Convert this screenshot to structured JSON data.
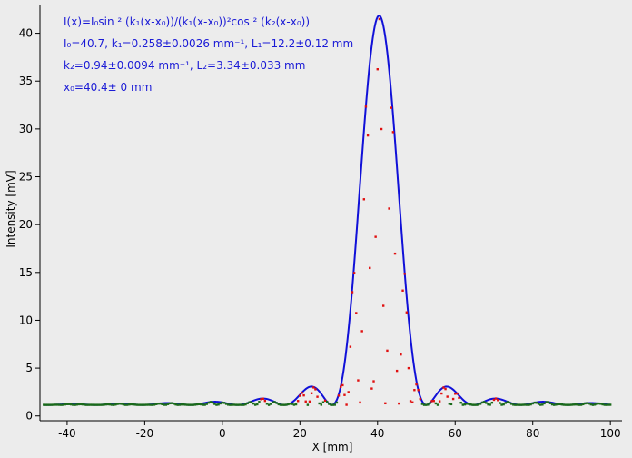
{
  "chart_data": {
    "type": "scatter",
    "xlabel": "X [mm]",
    "ylabel": "Intensity [mV]",
    "xlim": [
      -47,
      103
    ],
    "ylim": [
      -0.5,
      43
    ],
    "x_ticks": [
      -40,
      -20,
      0,
      20,
      40,
      60,
      80,
      100
    ],
    "y_ticks": [
      0,
      5,
      10,
      15,
      20,
      25,
      30,
      35,
      40
    ],
    "grid": false,
    "colors": {
      "fit": "#1010d8",
      "data": "#e01010",
      "data_dark": "#1a6a1a",
      "text": "#1a1ad6"
    },
    "annotation_lines": [
      "I(x)=I₀sin ² (k₁(x-x₀))/(k₁(x-x₀))²cos ² (k₂(x-x₀))",
      "I₀=40.7,  k₁=0.258±0.0026 mm⁻¹,   L₁=12.2±0.12 mm",
      "k₂=0.94±0.0094 mm⁻¹,   L₂=3.34±0.033 mm",
      "x₀=40.4±  0 mm"
    ],
    "fit": {
      "I0": 40.7,
      "k1": 0.258,
      "k2": 0.94,
      "x0": 40.4,
      "baseline": 1.15,
      "x_range": [
        -46,
        100
      ]
    },
    "series": [
      {
        "role": "fit curve",
        "color": "#1010d8"
      },
      {
        "role": "measured points",
        "color": "#e01010"
      }
    ]
  }
}
